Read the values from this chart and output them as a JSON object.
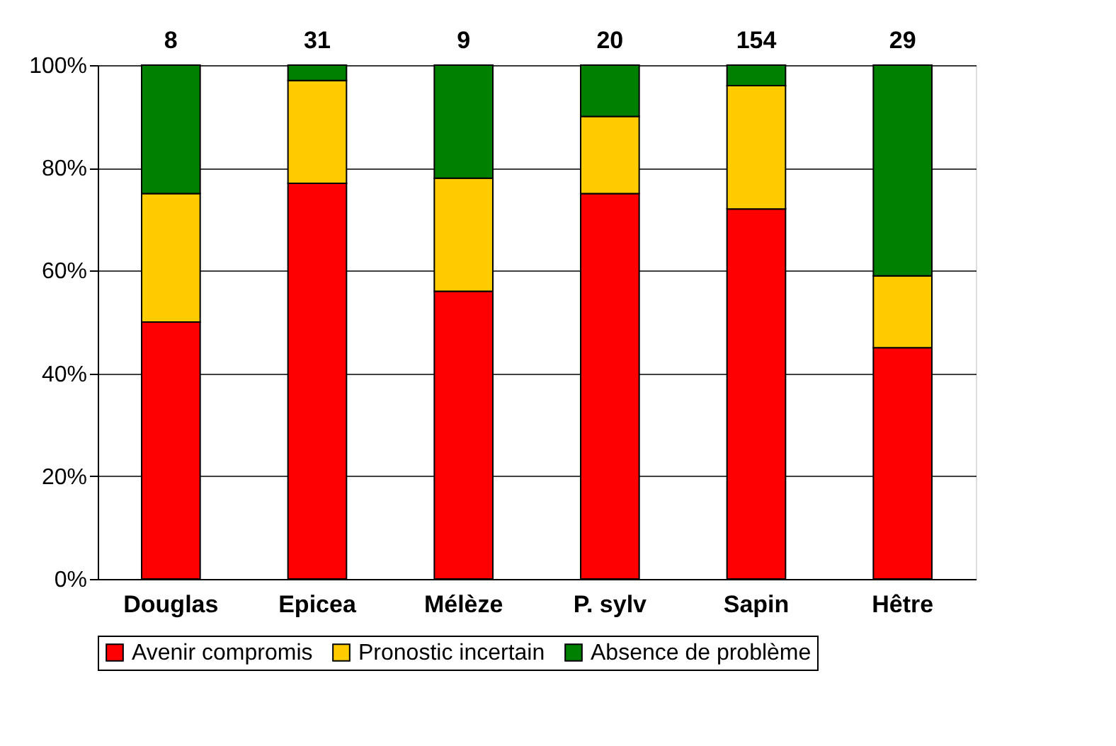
{
  "chart_data": {
    "type": "bar",
    "stacked": true,
    "categories": [
      "Douglas",
      "Epicea",
      "Mélèze",
      "P. sylv",
      "Sapin",
      "Hêtre"
    ],
    "series": [
      {
        "name": "Avenir compromis",
        "color": "#ff0000",
        "values": [
          50,
          77,
          56,
          75,
          72,
          45
        ]
      },
      {
        "name": "Pronostic incertain",
        "color": "#ffcc00",
        "values": [
          25,
          20,
          22,
          15,
          24,
          14
        ]
      },
      {
        "name": "Absence de problème",
        "color": "#008000",
        "values": [
          25,
          3,
          22,
          10,
          4,
          41
        ]
      }
    ],
    "ylim": [
      0,
      100
    ],
    "yticks": [
      {
        "value": 0,
        "label": "0%"
      },
      {
        "value": 20,
        "label": "20%"
      },
      {
        "value": 40,
        "label": "40%"
      },
      {
        "value": 60,
        "label": "60%"
      },
      {
        "value": 80,
        "label": "80%"
      },
      {
        "value": 100,
        "label": "100%"
      }
    ],
    "grid": "y",
    "legend": "bottom",
    "annotations": [
      {
        "text": "8",
        "x": "Douglas",
        "y": 100
      },
      {
        "text": "31",
        "x": "Epicea",
        "y": 100
      },
      {
        "text": "9",
        "x": "Mélèze",
        "y": 100
      },
      {
        "text": "20",
        "x": "P. sylv",
        "y": 100
      },
      {
        "text": "154",
        "x": "Sapin",
        "y": 100
      },
      {
        "text": "29",
        "x": "Hêtre",
        "y": 100
      }
    ]
  }
}
